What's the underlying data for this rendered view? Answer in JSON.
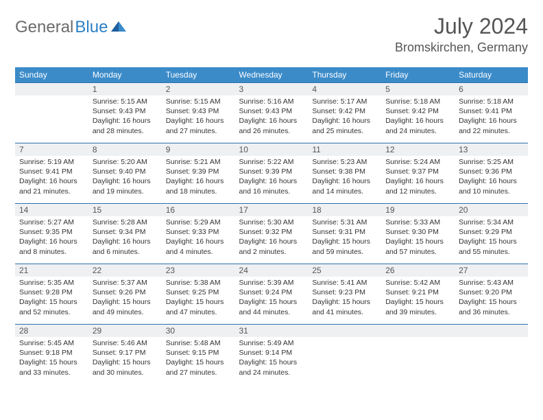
{
  "logo": {
    "text_gray": "General",
    "text_blue": "Blue"
  },
  "title": "July 2024",
  "location": "Bromskirchen, Germany",
  "colors": {
    "header_bg": "#3b8bc9",
    "header_text": "#ffffff",
    "row_border": "#2a6fa8",
    "datebar_bg": "#eef0f2",
    "body_text": "#333333",
    "title_text": "#555555"
  },
  "day_names": [
    "Sunday",
    "Monday",
    "Tuesday",
    "Wednesday",
    "Thursday",
    "Friday",
    "Saturday"
  ],
  "weeks": [
    [
      null,
      {
        "n": "1",
        "sr": "5:15 AM",
        "ss": "9:43 PM",
        "dl": "16 hours and 28 minutes."
      },
      {
        "n": "2",
        "sr": "5:15 AM",
        "ss": "9:43 PM",
        "dl": "16 hours and 27 minutes."
      },
      {
        "n": "3",
        "sr": "5:16 AM",
        "ss": "9:43 PM",
        "dl": "16 hours and 26 minutes."
      },
      {
        "n": "4",
        "sr": "5:17 AM",
        "ss": "9:42 PM",
        "dl": "16 hours and 25 minutes."
      },
      {
        "n": "5",
        "sr": "5:18 AM",
        "ss": "9:42 PM",
        "dl": "16 hours and 24 minutes."
      },
      {
        "n": "6",
        "sr": "5:18 AM",
        "ss": "9:41 PM",
        "dl": "16 hours and 22 minutes."
      }
    ],
    [
      {
        "n": "7",
        "sr": "5:19 AM",
        "ss": "9:41 PM",
        "dl": "16 hours and 21 minutes."
      },
      {
        "n": "8",
        "sr": "5:20 AM",
        "ss": "9:40 PM",
        "dl": "16 hours and 19 minutes."
      },
      {
        "n": "9",
        "sr": "5:21 AM",
        "ss": "9:39 PM",
        "dl": "16 hours and 18 minutes."
      },
      {
        "n": "10",
        "sr": "5:22 AM",
        "ss": "9:39 PM",
        "dl": "16 hours and 16 minutes."
      },
      {
        "n": "11",
        "sr": "5:23 AM",
        "ss": "9:38 PM",
        "dl": "16 hours and 14 minutes."
      },
      {
        "n": "12",
        "sr": "5:24 AM",
        "ss": "9:37 PM",
        "dl": "16 hours and 12 minutes."
      },
      {
        "n": "13",
        "sr": "5:25 AM",
        "ss": "9:36 PM",
        "dl": "16 hours and 10 minutes."
      }
    ],
    [
      {
        "n": "14",
        "sr": "5:27 AM",
        "ss": "9:35 PM",
        "dl": "16 hours and 8 minutes."
      },
      {
        "n": "15",
        "sr": "5:28 AM",
        "ss": "9:34 PM",
        "dl": "16 hours and 6 minutes."
      },
      {
        "n": "16",
        "sr": "5:29 AM",
        "ss": "9:33 PM",
        "dl": "16 hours and 4 minutes."
      },
      {
        "n": "17",
        "sr": "5:30 AM",
        "ss": "9:32 PM",
        "dl": "16 hours and 2 minutes."
      },
      {
        "n": "18",
        "sr": "5:31 AM",
        "ss": "9:31 PM",
        "dl": "15 hours and 59 minutes."
      },
      {
        "n": "19",
        "sr": "5:33 AM",
        "ss": "9:30 PM",
        "dl": "15 hours and 57 minutes."
      },
      {
        "n": "20",
        "sr": "5:34 AM",
        "ss": "9:29 PM",
        "dl": "15 hours and 55 minutes."
      }
    ],
    [
      {
        "n": "21",
        "sr": "5:35 AM",
        "ss": "9:28 PM",
        "dl": "15 hours and 52 minutes."
      },
      {
        "n": "22",
        "sr": "5:37 AM",
        "ss": "9:26 PM",
        "dl": "15 hours and 49 minutes."
      },
      {
        "n": "23",
        "sr": "5:38 AM",
        "ss": "9:25 PM",
        "dl": "15 hours and 47 minutes."
      },
      {
        "n": "24",
        "sr": "5:39 AM",
        "ss": "9:24 PM",
        "dl": "15 hours and 44 minutes."
      },
      {
        "n": "25",
        "sr": "5:41 AM",
        "ss": "9:23 PM",
        "dl": "15 hours and 41 minutes."
      },
      {
        "n": "26",
        "sr": "5:42 AM",
        "ss": "9:21 PM",
        "dl": "15 hours and 39 minutes."
      },
      {
        "n": "27",
        "sr": "5:43 AM",
        "ss": "9:20 PM",
        "dl": "15 hours and 36 minutes."
      }
    ],
    [
      {
        "n": "28",
        "sr": "5:45 AM",
        "ss": "9:18 PM",
        "dl": "15 hours and 33 minutes."
      },
      {
        "n": "29",
        "sr": "5:46 AM",
        "ss": "9:17 PM",
        "dl": "15 hours and 30 minutes."
      },
      {
        "n": "30",
        "sr": "5:48 AM",
        "ss": "9:15 PM",
        "dl": "15 hours and 27 minutes."
      },
      {
        "n": "31",
        "sr": "5:49 AM",
        "ss": "9:14 PM",
        "dl": "15 hours and 24 minutes."
      },
      null,
      null,
      null
    ]
  ],
  "labels": {
    "sunrise": "Sunrise:",
    "sunset": "Sunset:",
    "daylight": "Daylight:"
  }
}
